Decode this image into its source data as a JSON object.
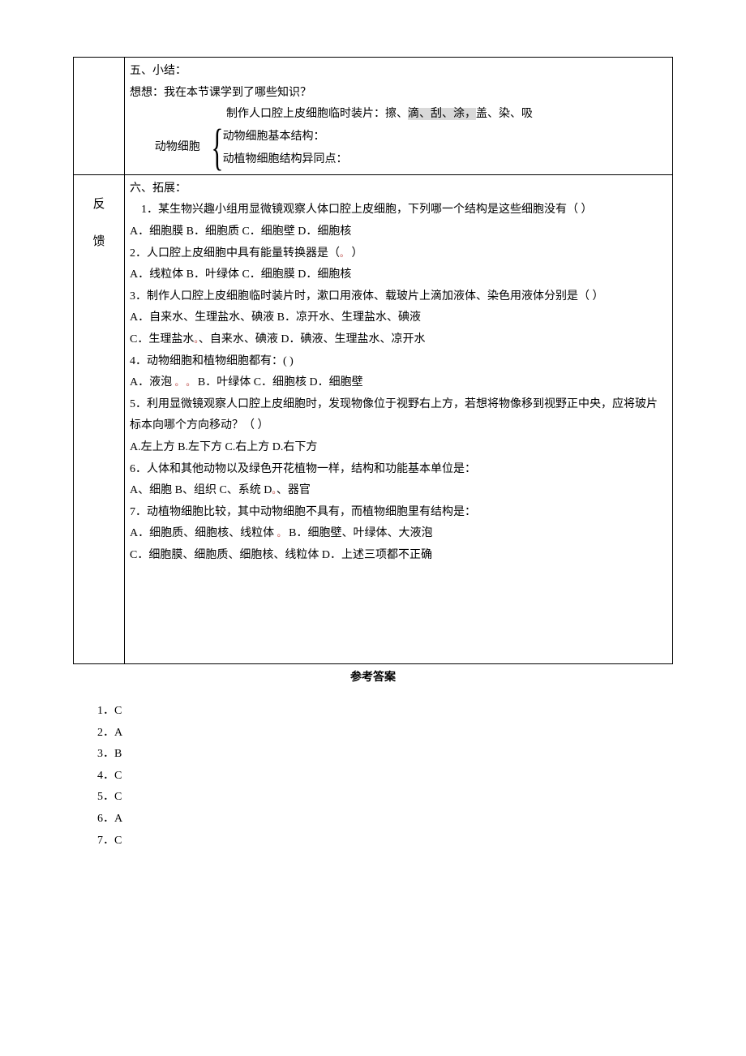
{
  "summary": {
    "heading": "五、小结：",
    "prompt": "想想：我在本节课学到了哪些知识？",
    "brace_label": "动物细胞",
    "brace_items": {
      "a_prefix": "制作人口腔上皮细胞临时装片：擦、",
      "a_hl": "滴、刮、涂，",
      "a_suffix": "盖、染、吸",
      "b": "动物细胞基本结构：",
      "c": "动植物细胞结构异同点："
    }
  },
  "feedback": {
    "side_a": "反",
    "side_b": "馈",
    "heading": "六、拓展：",
    "q1": {
      "stem": "1．某生物兴趣小组用显微镜观察人体口腔上皮细胞，下列哪一个结构是这些细胞没有（    ）",
      "opts": "A．细胞膜        B．细胞质        C．细胞壁            D．细胞核"
    },
    "q2": {
      "stem_a": "2．人口腔上皮细胞中具有能量转换器是（",
      "stem_b": "  ）",
      "opts": "A．线粒体     B．叶绿体     C．细胞膜     D．细胞核"
    },
    "q3": {
      "stem": "3．制作人口腔上皮细胞临时装片时，漱口用液体、载玻片上滴加液体、染色用液体分别是（    ）",
      "optsAB": "A．自来水、生理盐水、碘液       B．凉开水、生理盐水、碘液",
      "optsCa": "C．生理盐水",
      "optsCb": "、自来水、碘液       D．碘液、生理盐水、凉开水"
    },
    "q4": {
      "stem": "4．动物细胞和植物细胞都有：(    )",
      "opts_a": "A．液泡 ",
      "opts_b": " B．叶绿体      C．细胞核        D．细胞壁"
    },
    "q5": {
      "stem": "5．利用显微镜观察人口腔上皮细胞时，发现物像位于视野右上方，若想将物像移到视野正中央，应将玻片标本向哪个方向移动？（   ）",
      "opts": "A.左上方          B.左下方          C.右上方          D.右下方"
    },
    "q6": {
      "stem": "6．人体和其他动物以及绿色开花植物一样，结构和功能基本单位是：",
      "opts_a": "A、细胞          B、组织          C、系统          D",
      "opts_b": "、器官"
    },
    "q7": {
      "stem": "7．动植物细胞比较，其中动物细胞不具有，而植物细胞里有结构是：",
      "optsAB_a": "A．细胞质、细胞核、线粒体              ",
      "optsAB_b": " B．细胞壁、叶绿体、大液泡",
      "optsCD": "C．细胞膜、细胞质、细胞核、线粒体       D．上述三项都不正确"
    }
  },
  "answers": {
    "title": "参考答案",
    "a1": "1．C",
    "a2": "2．A",
    "a3": "3．B",
    "a4": "4．C",
    "a5": "5．C",
    "a6": "6．A",
    "a7": "7．C"
  }
}
